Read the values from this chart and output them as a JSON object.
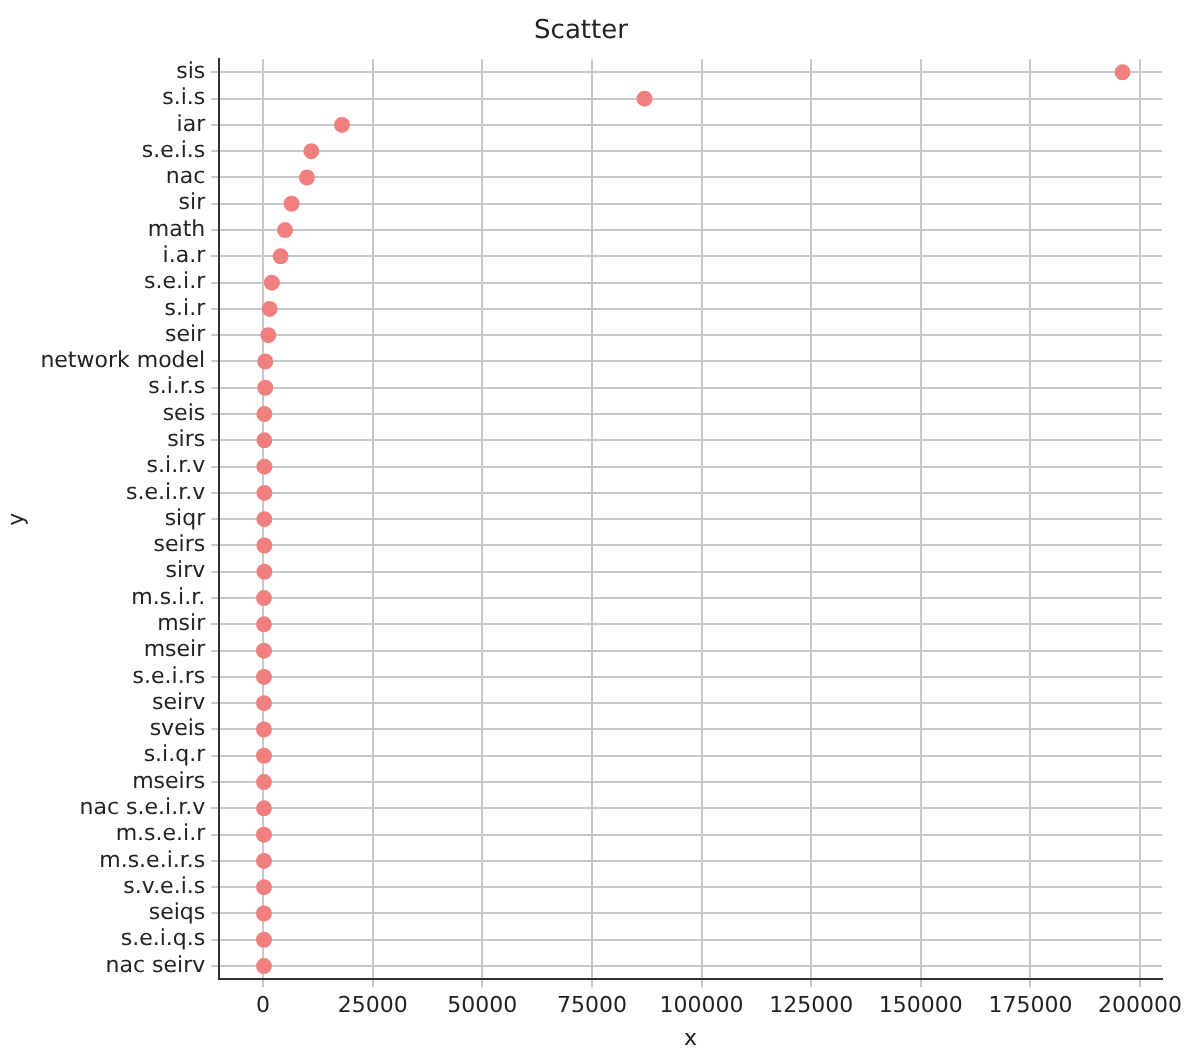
{
  "chart_data": {
    "type": "scatter",
    "title": "Scatter",
    "xlabel": "x",
    "ylabel": "y",
    "categories": [
      "sis",
      "s.i.s",
      "iar",
      "s.e.i.s",
      "nac",
      "sir",
      "math",
      "i.a.r",
      "s.e.i.r",
      "s.i.r",
      "seir",
      "network model",
      "s.i.r.s",
      "seis",
      "sirs",
      "s.i.r.v",
      "s.e.i.r.v",
      "siqr",
      "seirs",
      "sirv",
      "m.s.i.r.",
      "msir",
      "mseir",
      "s.e.i.rs",
      "seirv",
      "sveis",
      "s.i.q.r",
      "mseirs",
      "nac s.e.i.r.v",
      "m.s.e.i.r",
      "m.s.e.i.r.s",
      "s.v.e.i.s",
      "seiqs",
      "s.e.i.q.s",
      "nac seirv"
    ],
    "values": [
      196000,
      87000,
      18000,
      11000,
      10000,
      6500,
      5000,
      4000,
      2000,
      1500,
      1200,
      500,
      500,
      300,
      300,
      300,
      300,
      300,
      300,
      300,
      200,
      200,
      200,
      200,
      200,
      200,
      200,
      200,
      200,
      200,
      200,
      200,
      200,
      200,
      200
    ],
    "color": "#f08080",
    "marker": "circle",
    "orientation": "horizontal",
    "xlim": [
      -10000,
      205000
    ],
    "xticks": [
      0,
      25000,
      50000,
      75000,
      100000,
      125000,
      150000,
      175000,
      200000
    ],
    "grid": true,
    "legend": false
  }
}
